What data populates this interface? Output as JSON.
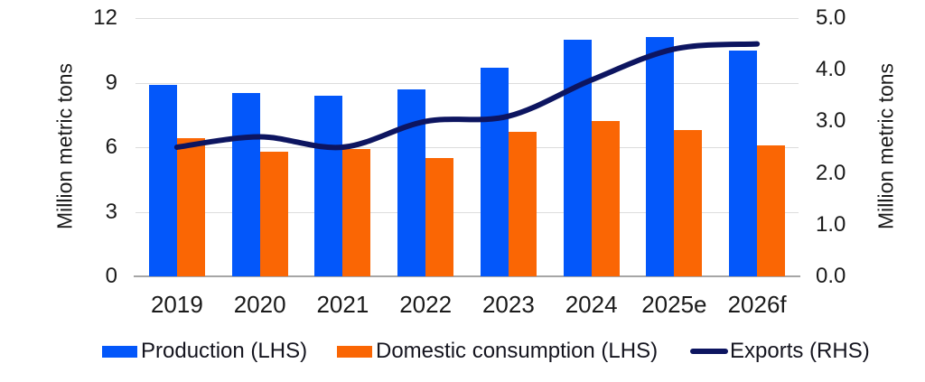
{
  "chart_data": {
    "type": "combo (bar + line)",
    "categories": [
      "2019",
      "2020",
      "2021",
      "2022",
      "2023",
      "2024",
      "2025e",
      "2026f"
    ],
    "series": [
      {
        "name": "Production (LHS)",
        "type": "bar",
        "axis": "left",
        "color": "#0357fa",
        "values": [
          8.9,
          8.5,
          8.4,
          8.7,
          9.7,
          11.0,
          11.1,
          10.5
        ]
      },
      {
        "name": "Domestic consumption (LHS)",
        "type": "bar",
        "axis": "left",
        "color": "#fa6604",
        "values": [
          6.4,
          5.8,
          5.9,
          5.5,
          6.7,
          7.2,
          6.8,
          6.1
        ]
      },
      {
        "name": "Exports (RHS)",
        "type": "line",
        "axis": "right",
        "color": "#0d1560",
        "values": [
          2.5,
          2.7,
          2.5,
          3.0,
          3.1,
          3.8,
          4.4,
          4.5
        ]
      }
    ],
    "left_axis": {
      "title": "Million metric tons",
      "min": 0,
      "max": 12,
      "tick_values": [
        0,
        3,
        6,
        9,
        12
      ],
      "tick_labels": [
        "0",
        "3",
        "6",
        "9",
        "12"
      ]
    },
    "right_axis": {
      "title": "Million metric tons",
      "min": 0,
      "max": 5,
      "tick_values": [
        0,
        1,
        2,
        3,
        4,
        5
      ],
      "tick_labels": [
        "0.0",
        "1.0",
        "2.0",
        "3.0",
        "4.0",
        "5.0"
      ]
    },
    "legend": {
      "position": "bottom",
      "items": [
        {
          "label": "Production (LHS)",
          "swatch": "bar",
          "color": "#0357fa",
          "x": 113
        },
        {
          "label": "Domestic consumption (LHS)",
          "swatch": "bar",
          "color": "#fa6604",
          "x": 373
        },
        {
          "label": "Exports (RHS)",
          "swatch": "line",
          "color": "#0d1560",
          "x": 764
        }
      ]
    },
    "grid": {
      "on": true,
      "color": "#dcdcdc",
      "baseline_color": "#a6a6a6"
    }
  }
}
